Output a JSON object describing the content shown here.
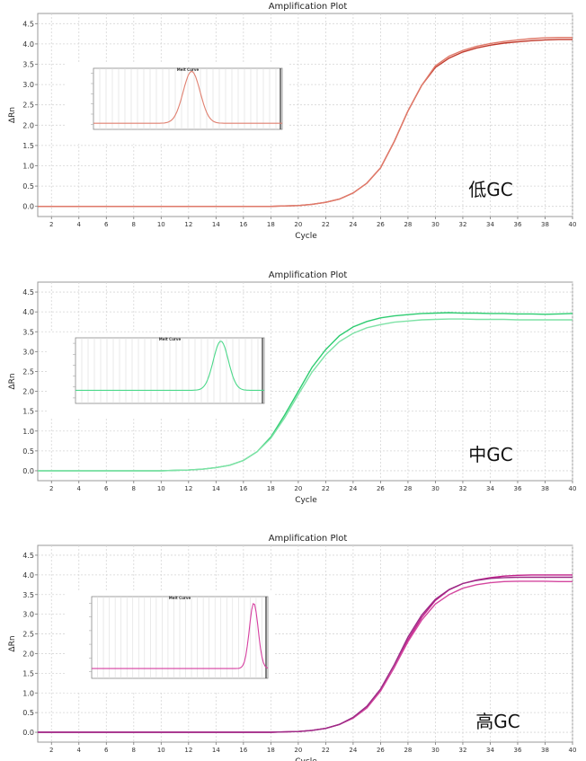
{
  "chart_data": [
    {
      "type": "line",
      "title": "Amplification Plot",
      "xlabel": "Cycle",
      "ylabel": "ΔRn",
      "xlim": [
        1,
        40
      ],
      "ylim": [
        -0.25,
        4.75
      ],
      "xticks": [
        2,
        4,
        6,
        8,
        10,
        12,
        14,
        16,
        18,
        20,
        22,
        24,
        26,
        28,
        30,
        32,
        34,
        36,
        38,
        40
      ],
      "yticks": [
        0.0,
        0.5,
        1.0,
        1.5,
        2.0,
        2.5,
        3.0,
        3.5,
        4.0,
        4.5
      ],
      "grid": true,
      "annotation": "低GC",
      "series": [
        {
          "color": "#c0392b",
          "values": [
            [
              1,
              0
            ],
            [
              18,
              0
            ],
            [
              19,
              0.01
            ],
            [
              20,
              0.02
            ],
            [
              21,
              0.05
            ],
            [
              22,
              0.1
            ],
            [
              23,
              0.18
            ],
            [
              24,
              0.33
            ],
            [
              25,
              0.57
            ],
            [
              26,
              0.95
            ],
            [
              27,
              1.6
            ],
            [
              28,
              2.35
            ],
            [
              29,
              2.98
            ],
            [
              30,
              3.42
            ],
            [
              31,
              3.65
            ],
            [
              32,
              3.8
            ],
            [
              33,
              3.9
            ],
            [
              34,
              3.97
            ],
            [
              35,
              4.02
            ],
            [
              36,
              4.05
            ],
            [
              37,
              4.08
            ],
            [
              38,
              4.1
            ],
            [
              39,
              4.11
            ],
            [
              40,
              4.11
            ]
          ]
        },
        {
          "color": "#e07a6a",
          "values": [
            [
              1,
              0
            ],
            [
              18,
              0
            ],
            [
              19,
              0.01
            ],
            [
              20,
              0.02
            ],
            [
              21,
              0.05
            ],
            [
              22,
              0.1
            ],
            [
              23,
              0.18
            ],
            [
              24,
              0.33
            ],
            [
              25,
              0.57
            ],
            [
              26,
              0.95
            ],
            [
              27,
              1.6
            ],
            [
              28,
              2.35
            ],
            [
              29,
              2.98
            ],
            [
              30,
              3.46
            ],
            [
              31,
              3.7
            ],
            [
              32,
              3.84
            ],
            [
              33,
              3.94
            ],
            [
              34,
              4.01
            ],
            [
              35,
              4.06
            ],
            [
              36,
              4.1
            ],
            [
              37,
              4.13
            ],
            [
              38,
              4.15
            ],
            [
              39,
              4.16
            ],
            [
              40,
              4.16
            ]
          ]
        }
      ],
      "inset": {
        "title": "Melt Curve",
        "color": "#e08070",
        "peak_x": 0.52,
        "peak_y": 0.95,
        "peak_width": 0.045,
        "baseline": 0.1
      }
    },
    {
      "type": "line",
      "title": "Amplification Plot",
      "xlabel": "Cycle",
      "ylabel": "ΔRn",
      "xlim": [
        1,
        40
      ],
      "ylim": [
        -0.25,
        4.75
      ],
      "xticks": [
        2,
        4,
        6,
        8,
        10,
        12,
        14,
        16,
        18,
        20,
        22,
        24,
        26,
        28,
        30,
        32,
        34,
        36,
        38,
        40
      ],
      "yticks": [
        0.0,
        0.5,
        1.0,
        1.5,
        2.0,
        2.5,
        3.0,
        3.5,
        4.0,
        4.5
      ],
      "grid": true,
      "annotation": "中GC",
      "series": [
        {
          "color": "#2ecc71",
          "values": [
            [
              1,
              0
            ],
            [
              10,
              0
            ],
            [
              11,
              0.01
            ],
            [
              12,
              0.02
            ],
            [
              13,
              0.04
            ],
            [
              14,
              0.08
            ],
            [
              15,
              0.14
            ],
            [
              16,
              0.26
            ],
            [
              17,
              0.48
            ],
            [
              18,
              0.85
            ],
            [
              19,
              1.4
            ],
            [
              20,
              2.0
            ],
            [
              21,
              2.6
            ],
            [
              22,
              3.05
            ],
            [
              23,
              3.4
            ],
            [
              24,
              3.62
            ],
            [
              25,
              3.76
            ],
            [
              26,
              3.85
            ],
            [
              27,
              3.9
            ],
            [
              28,
              3.93
            ],
            [
              29,
              3.96
            ],
            [
              30,
              3.97
            ],
            [
              31,
              3.98
            ],
            [
              32,
              3.97
            ],
            [
              33,
              3.97
            ],
            [
              34,
              3.96
            ],
            [
              35,
              3.96
            ],
            [
              36,
              3.95
            ],
            [
              37,
              3.95
            ],
            [
              38,
              3.94
            ],
            [
              39,
              3.95
            ],
            [
              40,
              3.96
            ]
          ]
        },
        {
          "color": "#7ee2a6",
          "values": [
            [
              1,
              0
            ],
            [
              10,
              0
            ],
            [
              11,
              0.01
            ],
            [
              12,
              0.02
            ],
            [
              13,
              0.04
            ],
            [
              14,
              0.08
            ],
            [
              15,
              0.14
            ],
            [
              16,
              0.26
            ],
            [
              17,
              0.48
            ],
            [
              18,
              0.82
            ],
            [
              19,
              1.33
            ],
            [
              20,
              1.92
            ],
            [
              21,
              2.48
            ],
            [
              22,
              2.92
            ],
            [
              23,
              3.25
            ],
            [
              24,
              3.46
            ],
            [
              25,
              3.6
            ],
            [
              26,
              3.68
            ],
            [
              27,
              3.74
            ],
            [
              28,
              3.77
            ],
            [
              29,
              3.8
            ],
            [
              30,
              3.81
            ],
            [
              31,
              3.82
            ],
            [
              32,
              3.82
            ],
            [
              33,
              3.81
            ],
            [
              34,
              3.81
            ],
            [
              35,
              3.81
            ],
            [
              36,
              3.8
            ],
            [
              37,
              3.8
            ],
            [
              38,
              3.8
            ],
            [
              39,
              3.8
            ],
            [
              40,
              3.8
            ]
          ]
        }
      ],
      "inset": {
        "title": "Melt Curve",
        "color": "#4cd88a",
        "peak_x": 0.77,
        "peak_y": 0.95,
        "peak_width": 0.04,
        "baseline": 0.2
      }
    },
    {
      "type": "line",
      "title": "Amplification Plot",
      "xlabel": "Cycle",
      "ylabel": "ΔRn",
      "xlim": [
        1,
        40
      ],
      "ylim": [
        -0.25,
        4.75
      ],
      "xticks": [
        2,
        4,
        6,
        8,
        10,
        12,
        14,
        16,
        18,
        20,
        22,
        24,
        26,
        28,
        30,
        32,
        34,
        36,
        38,
        40
      ],
      "yticks": [
        0.0,
        0.5,
        1.0,
        1.5,
        2.0,
        2.5,
        3.0,
        3.5,
        4.0,
        4.5
      ],
      "grid": true,
      "annotation": "高GC",
      "series": [
        {
          "color": "#c0208a",
          "values": [
            [
              1,
              0
            ],
            [
              18,
              0
            ],
            [
              19,
              0.01
            ],
            [
              20,
              0.02
            ],
            [
              21,
              0.05
            ],
            [
              22,
              0.1
            ],
            [
              23,
              0.2
            ],
            [
              24,
              0.36
            ],
            [
              25,
              0.62
            ],
            [
              26,
              1.05
            ],
            [
              27,
              1.65
            ],
            [
              28,
              2.35
            ],
            [
              29,
              2.92
            ],
            [
              30,
              3.35
            ],
            [
              31,
              3.62
            ],
            [
              32,
              3.78
            ],
            [
              33,
              3.87
            ],
            [
              34,
              3.93
            ],
            [
              35,
              3.97
            ],
            [
              36,
              3.99
            ],
            [
              37,
              4.0
            ],
            [
              38,
              4.0
            ],
            [
              39,
              4.0
            ],
            [
              40,
              4.0
            ]
          ]
        },
        {
          "color": "#d4479f",
          "values": [
            [
              1,
              0
            ],
            [
              18,
              0
            ],
            [
              19,
              0.01
            ],
            [
              20,
              0.02
            ],
            [
              21,
              0.05
            ],
            [
              22,
              0.1
            ],
            [
              23,
              0.2
            ],
            [
              24,
              0.36
            ],
            [
              25,
              0.62
            ],
            [
              26,
              1.05
            ],
            [
              27,
              1.65
            ],
            [
              28,
              2.3
            ],
            [
              29,
              2.85
            ],
            [
              30,
              3.26
            ],
            [
              31,
              3.5
            ],
            [
              32,
              3.66
            ],
            [
              33,
              3.75
            ],
            [
              34,
              3.8
            ],
            [
              35,
              3.83
            ],
            [
              36,
              3.84
            ],
            [
              37,
              3.84
            ],
            [
              38,
              3.84
            ],
            [
              39,
              3.83
            ],
            [
              40,
              3.83
            ]
          ]
        },
        {
          "color": "#9b2a86",
          "values": [
            [
              1,
              0
            ],
            [
              18,
              0
            ],
            [
              19,
              0.01
            ],
            [
              20,
              0.02
            ],
            [
              21,
              0.05
            ],
            [
              22,
              0.1
            ],
            [
              23,
              0.2
            ],
            [
              24,
              0.38
            ],
            [
              25,
              0.66
            ],
            [
              26,
              1.1
            ],
            [
              27,
              1.72
            ],
            [
              28,
              2.42
            ],
            [
              29,
              2.98
            ],
            [
              30,
              3.38
            ],
            [
              31,
              3.63
            ],
            [
              32,
              3.78
            ],
            [
              33,
              3.86
            ],
            [
              34,
              3.91
            ],
            [
              35,
              3.93
            ],
            [
              36,
              3.94
            ],
            [
              37,
              3.94
            ],
            [
              38,
              3.94
            ],
            [
              39,
              3.94
            ],
            [
              40,
              3.94
            ]
          ]
        }
      ],
      "inset": {
        "title": "Melt Curve",
        "color": "#d63fa0",
        "peak_x": 0.92,
        "peak_y": 0.92,
        "peak_width": 0.025,
        "baseline": 0.12
      }
    }
  ]
}
